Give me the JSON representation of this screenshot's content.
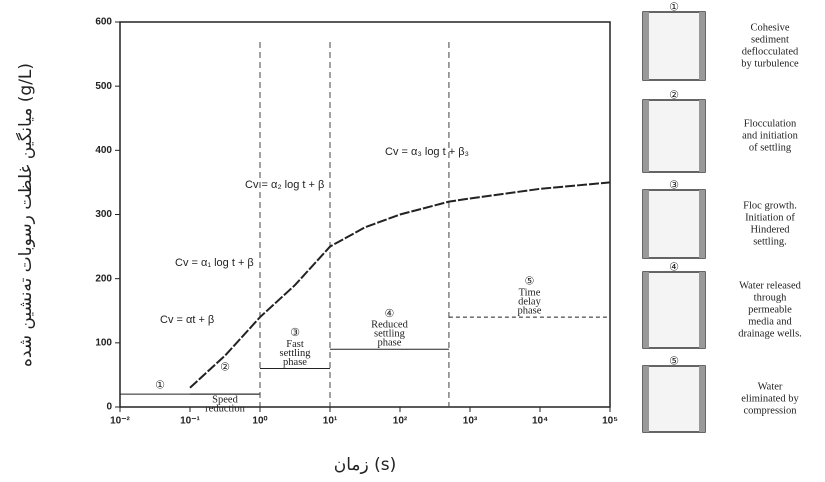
{
  "chart_data": {
    "type": "line",
    "y_label": "میانگین غلظت رسوبات ته‌نشین شده (g/L)",
    "x_label": "زمان (s)",
    "log_x": true,
    "xlim": [
      0.01,
      100000
    ],
    "xticks": [
      {
        "value": 0.01,
        "label": "10⁻²"
      },
      {
        "value": 0.1,
        "label": "10⁻¹"
      },
      {
        "value": 1,
        "label": "10⁰"
      },
      {
        "value": 10,
        "label": "10¹"
      },
      {
        "value": 100,
        "label": "10²"
      },
      {
        "value": 1000,
        "label": "10³"
      },
      {
        "value": 10000,
        "label": "10⁴"
      },
      {
        "value": 100000,
        "label": "10⁵"
      }
    ],
    "ylim": [
      0,
      600
    ],
    "yticks": [
      0,
      100,
      200,
      300,
      400,
      500,
      600
    ],
    "series": [
      {
        "color": "#222222",
        "x": [
          0.1,
          0.316,
          1,
          3.16,
          10,
          31.6,
          100,
          500,
          1000,
          10000,
          100000
        ],
        "values": [
          30,
          80,
          140,
          190,
          250,
          280,
          300,
          320,
          325,
          340,
          350
        ]
      }
    ],
    "annotations": [
      "Cv = αt + β",
      "Cv = α₁ log t + β",
      "Cv = α₂ log t + β",
      "Cv = α₃ log t + β₃"
    ],
    "zones": [
      {
        "label": "①",
        "x": [
          0.01,
          1
        ],
        "y": 20
      },
      {
        "label": "②",
        "text": [
          "Speed",
          "reduction"
        ],
        "x": [
          0.1,
          1
        ],
        "y": 20
      },
      {
        "label": "③",
        "text": [
          "Fast",
          "settling",
          "phase"
        ],
        "x": [
          1,
          10
        ],
        "y": 60
      },
      {
        "label": "④",
        "text": [
          "Reduced",
          "settling",
          "phase"
        ],
        "x": [
          10,
          500
        ],
        "y": 90
      },
      {
        "label": "⑤",
        "text": [
          "Time",
          "delay",
          "phase"
        ],
        "x": [
          500,
          100000
        ],
        "y": 140
      }
    ],
    "stages": [
      {
        "label": "①",
        "text": [
          "Cohesive",
          "sediment",
          "deflocculated",
          "by turbulence"
        ]
      },
      {
        "label": "②",
        "text": [
          "Flocculation",
          "and initiation",
          "of settling"
        ]
      },
      {
        "label": "③",
        "text": [
          "Floc growth.",
          "Initiation of",
          "Hindered",
          "settling."
        ]
      },
      {
        "label": "④",
        "text": [
          "Water released",
          "through",
          "permeable",
          "media and",
          "drainage wells."
        ]
      },
      {
        "label": "⑤",
        "text": [
          "Water",
          "eliminated by",
          "compression"
        ]
      }
    ]
  }
}
